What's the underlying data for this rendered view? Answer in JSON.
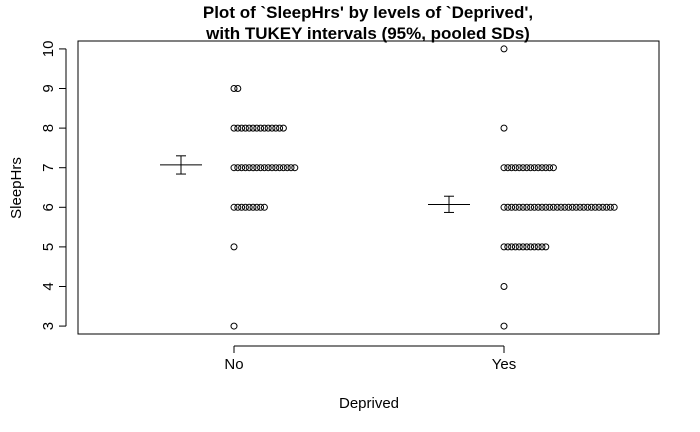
{
  "chart_data": {
    "type": "scatter",
    "title_lines": [
      "Plot of `SleepHrs' by levels of `Deprived',",
      "with TUKEY intervals (95%, pooled SDs)"
    ],
    "xlabel": "Deprived",
    "ylabel": "SleepHrs",
    "categories": [
      "No",
      "Yes"
    ],
    "y_ticks": [
      "3",
      "4",
      "5",
      "6",
      "7",
      "8",
      "9",
      "10"
    ],
    "ylim": [
      2.8,
      10.2
    ],
    "grid": false,
    "legend": "none",
    "groups": [
      {
        "category": "No",
        "counts": [
          {
            "y": 3,
            "n": 1
          },
          {
            "y": 5,
            "n": 1
          },
          {
            "y": 6,
            "n": 9
          },
          {
            "y": 7,
            "n": 17
          },
          {
            "y": 8,
            "n": 14
          },
          {
            "y": 9,
            "n": 2
          }
        ],
        "mean": 7.07,
        "ci_low": 6.84,
        "ci_high": 7.3
      },
      {
        "category": "Yes",
        "counts": [
          {
            "y": 3,
            "n": 1
          },
          {
            "y": 4,
            "n": 1
          },
          {
            "y": 5,
            "n": 12
          },
          {
            "y": 6,
            "n": 30
          },
          {
            "y": 7,
            "n": 14
          },
          {
            "y": 8,
            "n": 1
          },
          {
            "y": 10,
            "n": 1
          }
        ],
        "mean": 6.07,
        "ci_low": 5.87,
        "ci_high": 6.28
      }
    ]
  }
}
